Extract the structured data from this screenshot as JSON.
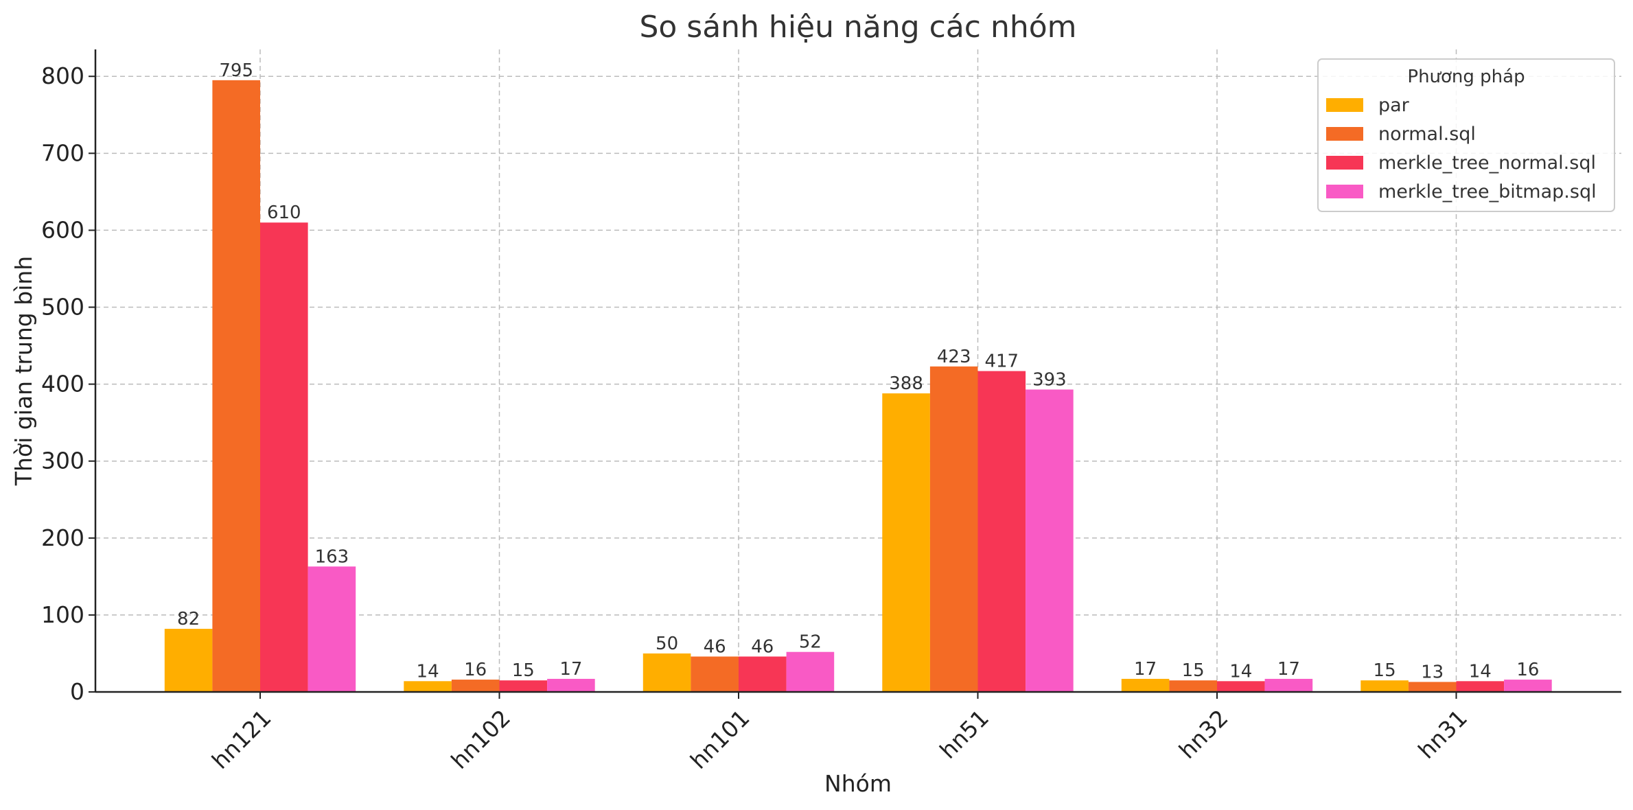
{
  "chart_data": {
    "type": "bar",
    "title": "So sánh hiệu năng các nhóm",
    "xlabel": "Nhóm",
    "ylabel": "Thời gian trung bình",
    "categories": [
      "hn121",
      "hn102",
      "hn101",
      "hn51",
      "hn32",
      "hn31"
    ],
    "ylim": [
      0,
      835
    ],
    "yticks": [
      0,
      100,
      200,
      300,
      400,
      500,
      600,
      700,
      800
    ],
    "grid": true,
    "legend": {
      "title": "Phương pháp",
      "placement": "top-right"
    },
    "series": [
      {
        "name": "par",
        "color": "#FFAE00",
        "values": [
          82,
          14,
          50,
          388,
          17,
          15
        ]
      },
      {
        "name": "normal.sql",
        "color": "#F46B25",
        "values": [
          795,
          16,
          46,
          423,
          15,
          13
        ]
      },
      {
        "name": "merkle_tree_normal.sql",
        "color": "#F73655",
        "values": [
          610,
          15,
          46,
          417,
          14,
          14
        ]
      },
      {
        "name": "merkle_tree_bitmap.sql",
        "color": "#F95AC5",
        "values": [
          163,
          17,
          52,
          393,
          17,
          16
        ]
      }
    ]
  }
}
